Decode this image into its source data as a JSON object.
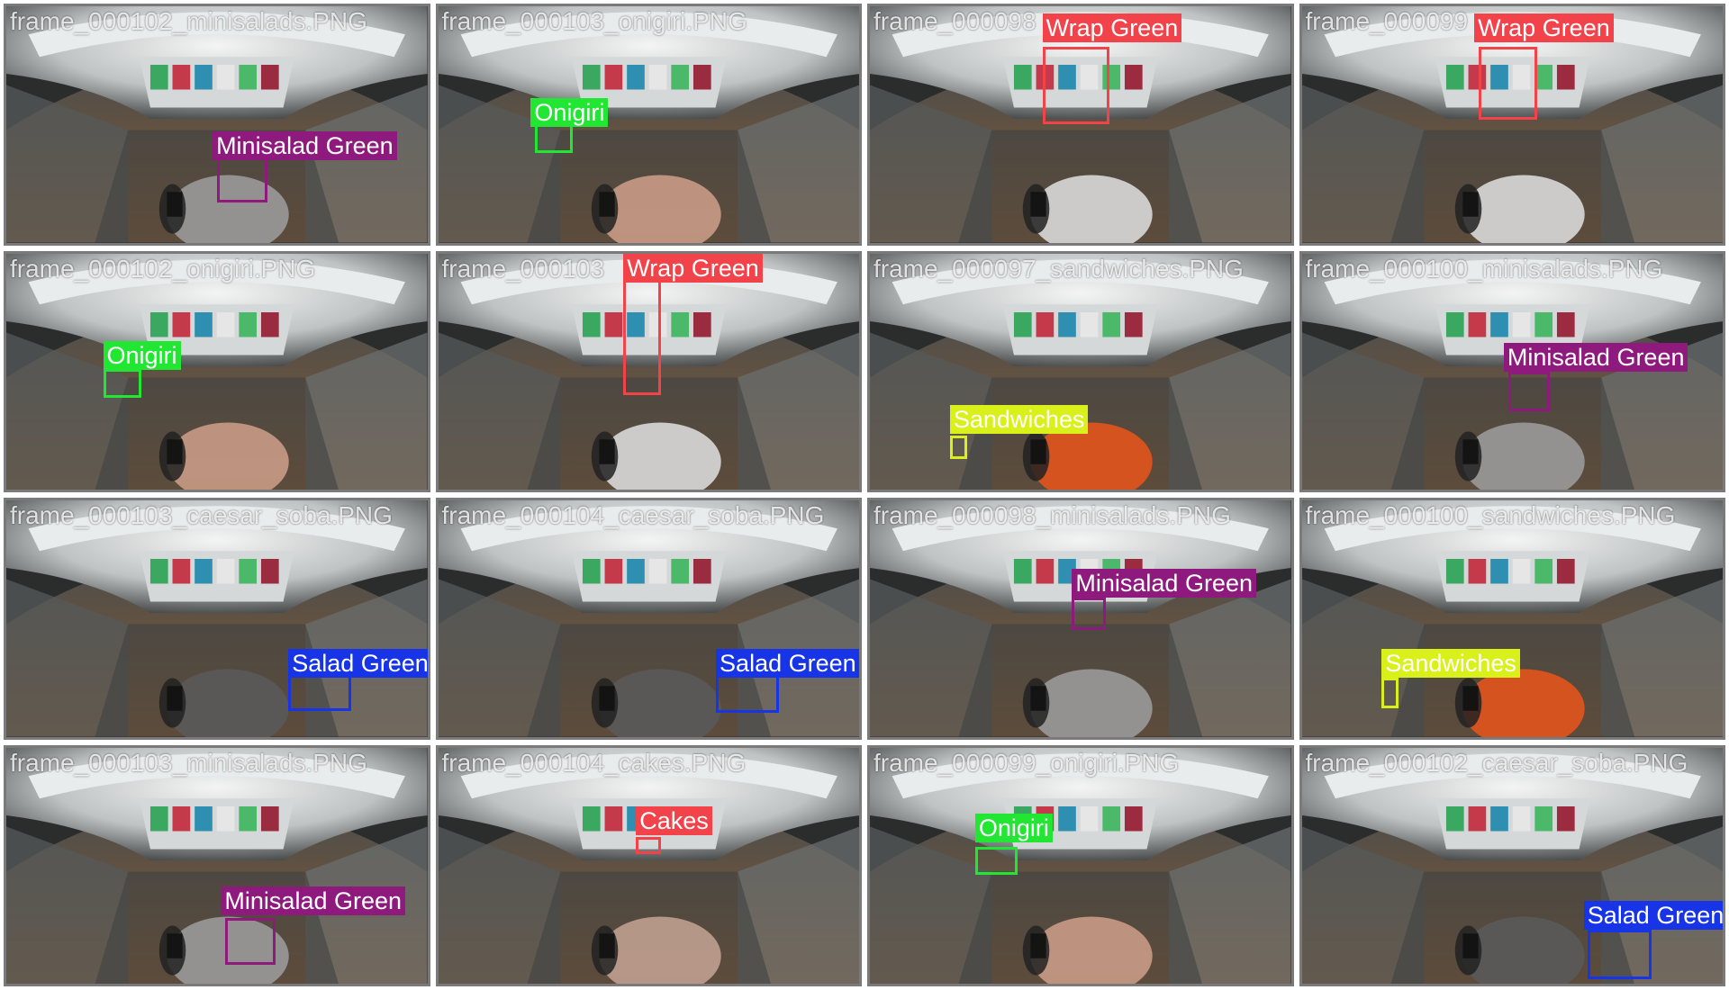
{
  "colors": {
    "Minisalad Green": "#8e1a7d",
    "Onigiri": "#21e632",
    "Wrap Green": "#f2424a",
    "Sandwiches": "#d9f01b",
    "Salad Green": "#1734e6",
    "Cakes": "#f2424a"
  },
  "tiles": [
    {
      "frame": "frame_000102_minisalads.PNG",
      "label": "Minisalad Green",
      "scene": "a"
    },
    {
      "frame": "frame_000103_onigiri.PNG",
      "label": "Onigiri",
      "scene": "b"
    },
    {
      "frame": "frame_000098",
      "label": "Wrap Green",
      "scene": "c"
    },
    {
      "frame": "frame_000099",
      "label": "Wrap Green",
      "scene": "c"
    },
    {
      "frame": "frame_000102_onigiri.PNG",
      "label": "Onigiri",
      "scene": "b"
    },
    {
      "frame": "frame_000103",
      "label": "Wrap Green",
      "scene": "c"
    },
    {
      "frame": "frame_000097_sandwiches.PNG",
      "label": "Sandwiches",
      "scene": "d"
    },
    {
      "frame": "frame_000100_minisalads.PNG",
      "label": "Minisalad Green",
      "scene": "a"
    },
    {
      "frame": "frame_000103_caesar_soba.PNG",
      "label": "Salad Green",
      "scene": "e"
    },
    {
      "frame": "frame_000104_caesar_soba.PNG",
      "label": "Salad Green",
      "scene": "e"
    },
    {
      "frame": "frame_000098_minisalads.PNG",
      "label": "Minisalad Green",
      "scene": "a"
    },
    {
      "frame": "frame_000100_sandwiches.PNG",
      "label": "Sandwiches",
      "scene": "d"
    },
    {
      "frame": "frame_000103_minisalads.PNG",
      "label": "Minisalad Green",
      "scene": "a"
    },
    {
      "frame": "frame_000104_cakes.PNG",
      "label": "Cakes",
      "scene": "f"
    },
    {
      "frame": "frame_000099_onigiri.PNG",
      "label": "Onigiri",
      "scene": "b"
    },
    {
      "frame": "frame_000102_caesar_soba.PNG",
      "label": "Salad Green",
      "scene": "e"
    }
  ]
}
